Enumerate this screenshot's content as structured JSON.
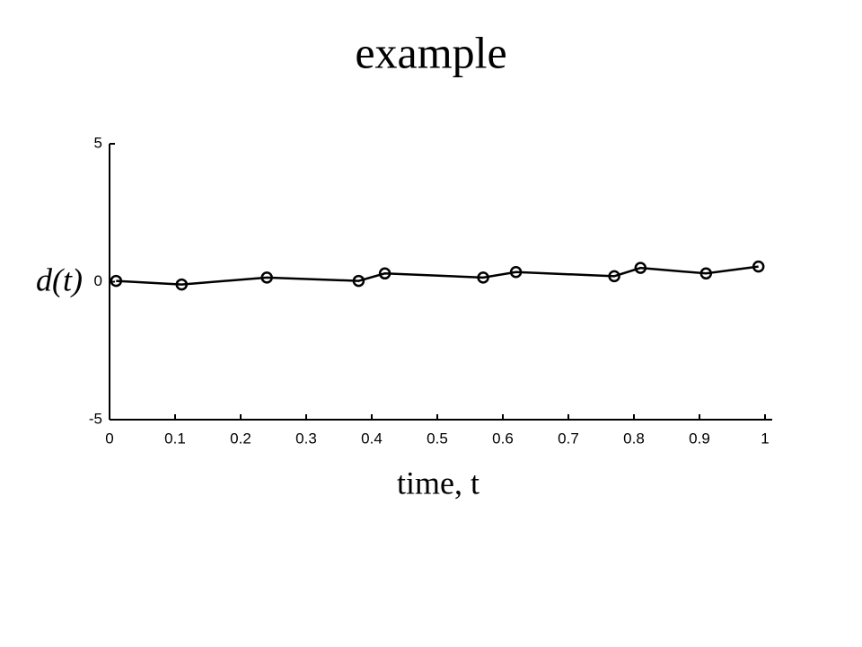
{
  "chart_data": {
    "type": "line",
    "title": "example",
    "xlabel": "time, t",
    "ylabel": "d(t)",
    "x": [
      0.01,
      0.11,
      0.24,
      0.38,
      0.42,
      0.57,
      0.62,
      0.77,
      0.81,
      0.91,
      0.99
    ],
    "values": [
      0.03,
      -0.1,
      0.15,
      0.03,
      0.3,
      0.15,
      0.35,
      0.2,
      0.5,
      0.3,
      0.55
    ],
    "color": "#000000",
    "marker": "circle",
    "xlim": [
      0,
      1
    ],
    "xticks": [
      0,
      0.1,
      0.2,
      0.3,
      0.4,
      0.5,
      0.6,
      0.7,
      0.8,
      0.9,
      1
    ],
    "ylim": [
      -5,
      5
    ],
    "yticks": [
      -5,
      0,
      5
    ],
    "grid": false
  }
}
